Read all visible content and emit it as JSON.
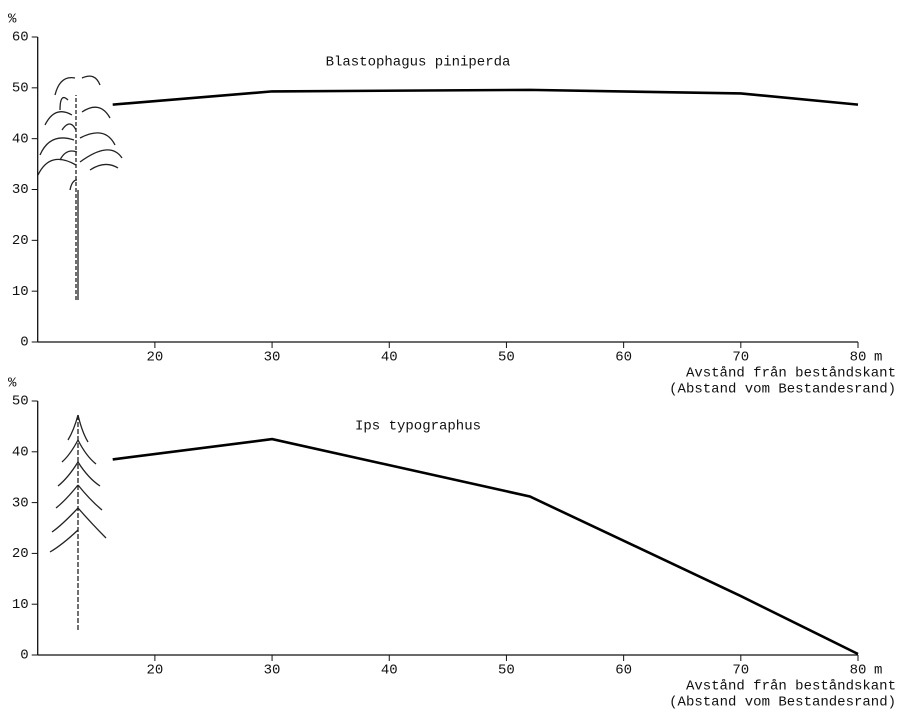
{
  "chart_data": [
    {
      "type": "line",
      "title": "Blastophagus piniperda",
      "y_unit": "%",
      "x_unit": "m",
      "x_label": [
        "Avstånd från beståndskant",
        "(Abstand vom Bestandesrand)"
      ],
      "x": [
        16.4,
        30,
        52,
        70,
        80
      ],
      "values": [
        46.7,
        49.3,
        49.6,
        48.9,
        46.7
      ],
      "color": "#000000",
      "xlim": [
        10,
        80
      ],
      "xticks": [
        20,
        30,
        40,
        50,
        60,
        70,
        80
      ],
      "ylim": [
        0,
        60
      ],
      "yticks": [
        0,
        10,
        20,
        30,
        40,
        50,
        60
      ]
    },
    {
      "type": "line",
      "title": "Ips typographus",
      "y_unit": "%",
      "x_unit": "m",
      "x_label": [
        "Avstånd från beståndskant",
        "(Abstand vom Bestandesrand)"
      ],
      "x": [
        16.4,
        30,
        52,
        70,
        80
      ],
      "values": [
        38.5,
        42.5,
        31.2,
        11.6,
        0.2
      ],
      "color": "#000000",
      "xlim": [
        10,
        80
      ],
      "xticks": [
        20,
        30,
        40,
        50,
        60,
        70,
        80
      ],
      "ylim": [
        0,
        50
      ],
      "yticks": [
        0,
        10,
        20,
        30,
        40,
        50
      ]
    }
  ]
}
